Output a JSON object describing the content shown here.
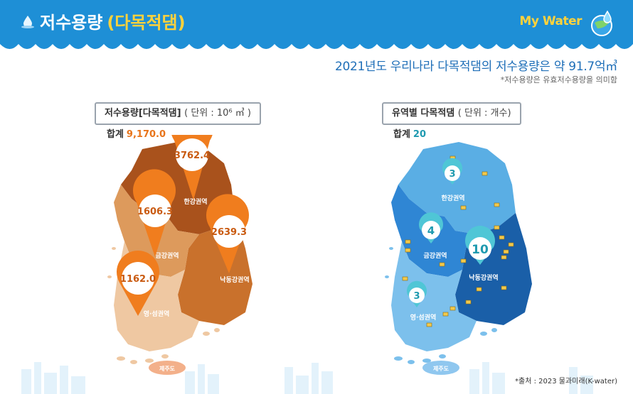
{
  "header": {
    "title_main": "저수용량",
    "title_paren": "(다목적댐)",
    "brand": "My Water"
  },
  "headline": "2021년도 우리나라 다목적댐의 저수용량은 약 91.7억㎥",
  "subnote": "*저수용량은 유효저수용량을 의미함",
  "left": {
    "label": "저수용량[다목적댐]",
    "unit": "( 단위 : 10⁶ ㎥ )",
    "total_label": "합계",
    "total_value": "9,170.0"
  },
  "right": {
    "label": "유역별 다목적댐",
    "unit": "( 단위 : 개수)",
    "total_label": "합계",
    "total_value": "20"
  },
  "jeju_label": "제주도",
  "source": "*출처 : 2023 물과미래(K-water)",
  "colors": {
    "header_blue": "#1e8fd6",
    "orange_pin": "#f07d1e",
    "teal_pin": "#4fc6d6"
  },
  "chart_data": [
    {
      "type": "map",
      "title": "저수용량[다목적댐]",
      "unit": "10⁶ ㎥",
      "total": 9170.0,
      "categories": [
        "한강권역",
        "금강권역",
        "낙동강권역",
        "영·섬권역"
      ],
      "values": [
        3762.4,
        1606.3,
        2639.3,
        1162.0
      ],
      "value_labels": [
        "3762.4",
        "1606.3",
        "2639.3",
        "1162.0"
      ]
    },
    {
      "type": "map",
      "title": "유역별 다목적댐",
      "unit": "개수",
      "total": 20,
      "categories": [
        "한강권역",
        "금강권역",
        "낙동강권역",
        "영·섬권역"
      ],
      "values": [
        3,
        4,
        10,
        3
      ],
      "value_labels": [
        "3",
        "4",
        "10",
        "3"
      ]
    }
  ]
}
